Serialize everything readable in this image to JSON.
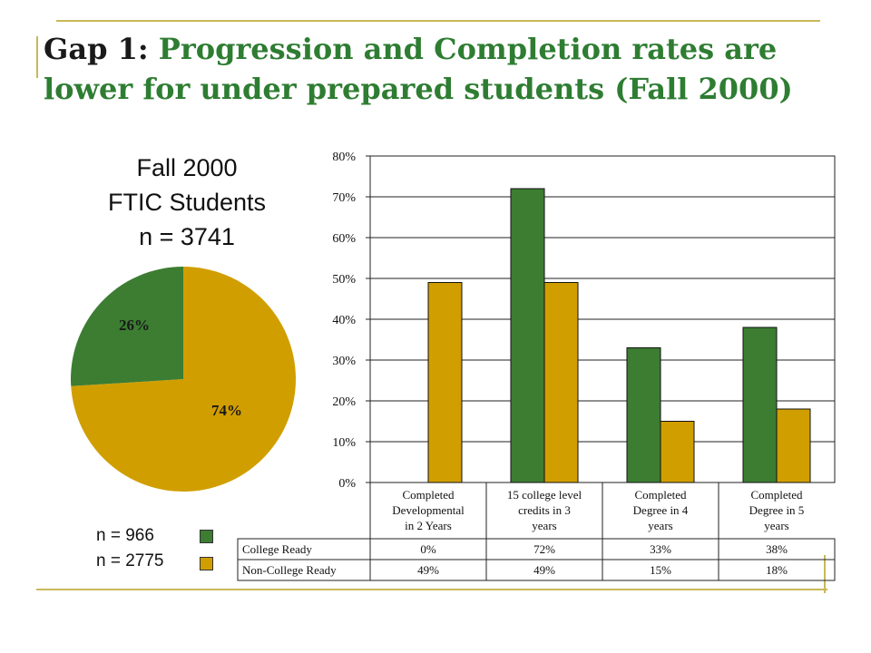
{
  "title": {
    "gap": "Gap 1:",
    "text": "Progression and Completion rates are lower for under prepared students (Fall 2000)"
  },
  "pie": {
    "title_lines": [
      "Fall 2000",
      "FTIC Students",
      "n = 3741"
    ],
    "slices": [
      {
        "label": "26%",
        "value": 26,
        "color": "#3c7d32"
      },
      {
        "label": "74%",
        "value": 74,
        "color": "#d19e00"
      }
    ]
  },
  "legend": [
    {
      "text": "n = 966",
      "color": "#3c7d32"
    },
    {
      "text": "n = 2775",
      "color": "#d19e00"
    }
  ],
  "chart_data": {
    "type": "bar",
    "categories": [
      [
        "Completed",
        "Developmental",
        "in 2 Years"
      ],
      [
        "15 college level",
        "credits in 3",
        "years"
      ],
      [
        "Completed",
        "Degree in 4",
        "years"
      ],
      [
        "Completed",
        "Degree in 5",
        "years"
      ]
    ],
    "series": [
      {
        "name": "College Ready",
        "values": [
          0,
          72,
          33,
          38
        ],
        "labels": [
          "0%",
          "72%",
          "33%",
          "38%"
        ],
        "color": "#3c7d32"
      },
      {
        "name": "Non-College Ready",
        "values": [
          49,
          49,
          15,
          18
        ],
        "labels": [
          "49%",
          "49%",
          "15%",
          "18%"
        ],
        "color": "#d19e00"
      }
    ],
    "ylim": [
      0,
      80
    ],
    "yticks": [
      "0%",
      "10%",
      "20%",
      "30%",
      "40%",
      "50%",
      "60%",
      "70%",
      "80%"
    ],
    "grid": true
  }
}
